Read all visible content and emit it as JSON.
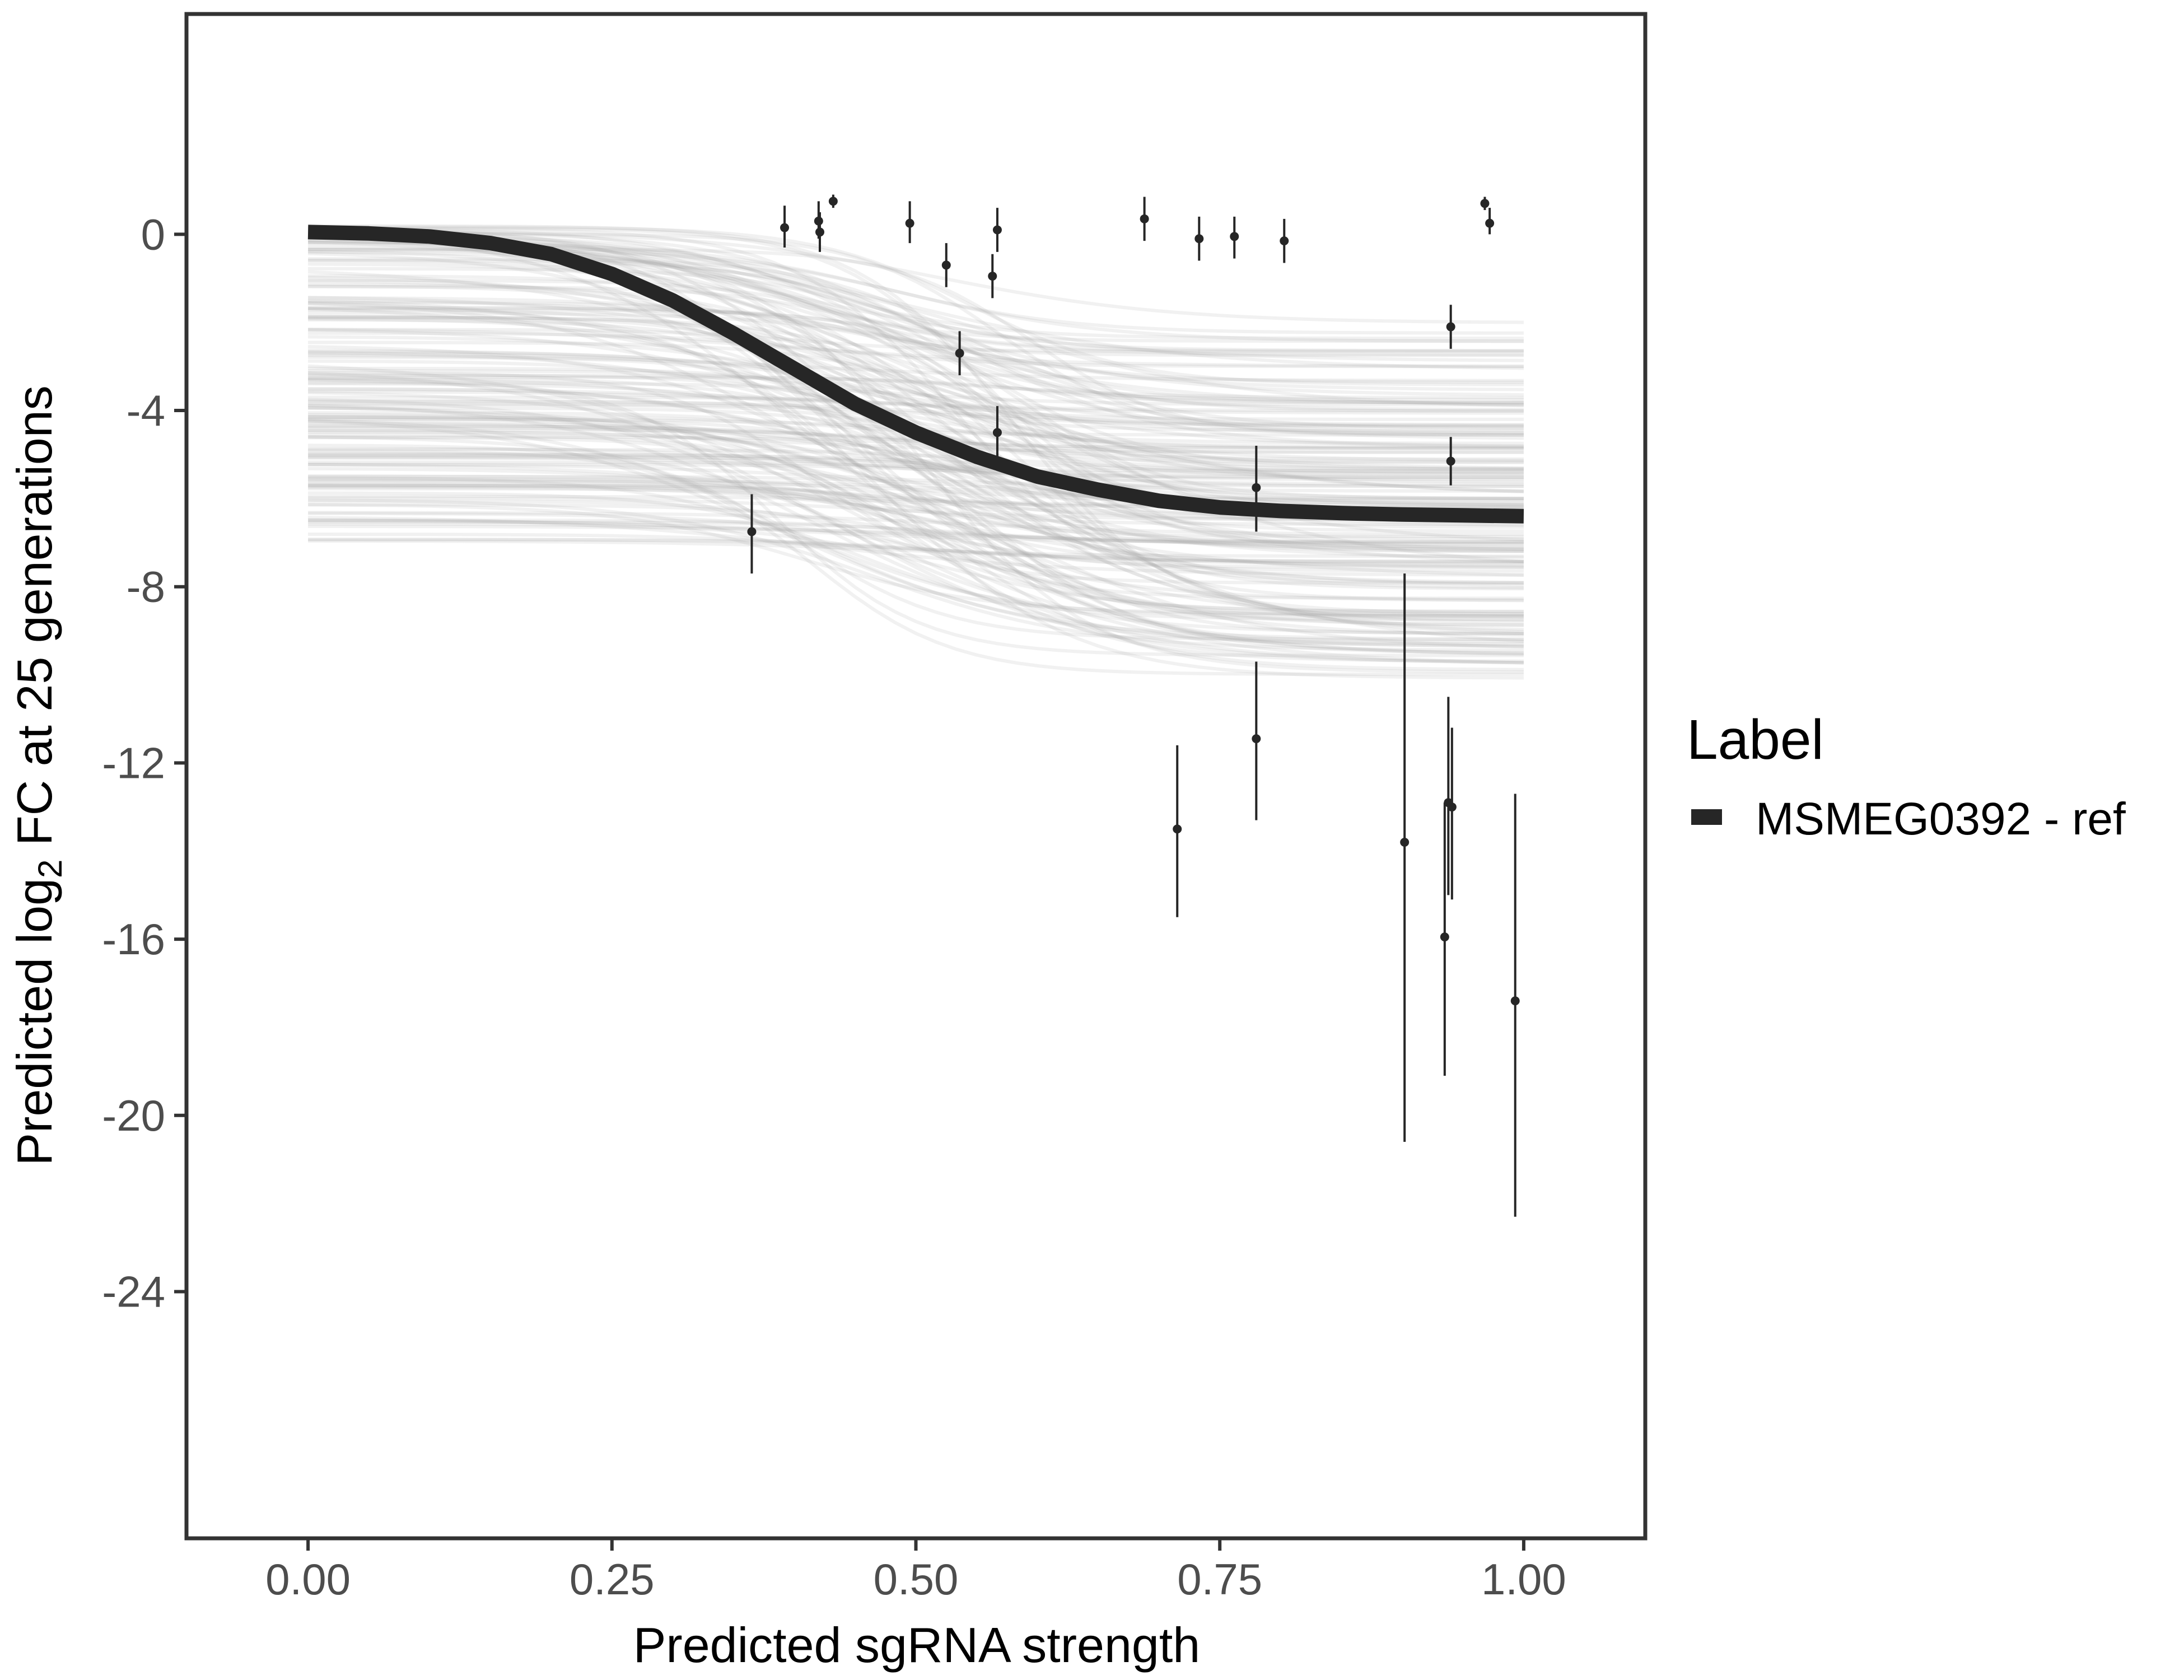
{
  "chart_data": {
    "type": "line",
    "xlabel": "Predicted sgRNA strength",
    "ylabel_prefix": "Predicted  log",
    "ylabel_sub": "2",
    "ylabel_suffix": " FC at 25 generations",
    "xlim": [
      -0.1,
      1.1
    ],
    "ylim": [
      -29.6,
      5
    ],
    "x_ticks": [
      0,
      0.25,
      0.5,
      0.75,
      1
    ],
    "x_tick_labels": [
      "0.00",
      "0.25",
      "0.50",
      "0.75",
      "1.00"
    ],
    "y_ticks": [
      0,
      -4,
      -8,
      -12,
      -16,
      -20,
      -24
    ],
    "y_tick_labels": [
      "0",
      "-4",
      "-8",
      "-12",
      "-16",
      "-20",
      "-24"
    ],
    "grid": false,
    "legend": {
      "title": "Label",
      "position": "right",
      "entries": [
        {
          "name": "MSMEG0392 - ref",
          "color": "#262626"
        }
      ]
    },
    "fit_curve": {
      "name": "MSMEG0392 - ref",
      "color": "#262626",
      "x": [
        0,
        0.05,
        0.1,
        0.15,
        0.2,
        0.25,
        0.3,
        0.35,
        0.4,
        0.45,
        0.5,
        0.55,
        0.6,
        0.65,
        0.7,
        0.75,
        0.8,
        0.85,
        0.9,
        0.95,
        1
      ],
      "y": [
        0.05,
        0.02,
        -0.05,
        -0.2,
        -0.45,
        -0.9,
        -1.5,
        -2.25,
        -3.05,
        -3.85,
        -4.5,
        -5.05,
        -5.5,
        -5.8,
        -6.05,
        -6.2,
        -6.28,
        -6.33,
        -6.36,
        -6.38,
        -6.4
      ]
    },
    "posterior_band": {
      "color": "#a6a6a6",
      "description_x": [
        0,
        1
      ],
      "upper_start": 0.2,
      "upper_end": -2.0,
      "lower_start": -7.0,
      "lower_end": -10.2
    },
    "points": [
      {
        "x": 0.365,
        "y": -6.75,
        "lo": -7.7,
        "hi": -5.9
      },
      {
        "x": 0.392,
        "y": 0.15,
        "lo": -0.3,
        "hi": 0.65
      },
      {
        "x": 0.42,
        "y": 0.3,
        "lo": -0.1,
        "hi": 0.75
      },
      {
        "x": 0.421,
        "y": 0.05,
        "lo": -0.4,
        "hi": 0.5
      },
      {
        "x": 0.432,
        "y": 0.75,
        "lo": 0.6,
        "hi": 0.9
      },
      {
        "x": 0.495,
        "y": 0.25,
        "lo": -0.2,
        "hi": 0.75
      },
      {
        "x": 0.525,
        "y": -0.7,
        "lo": -1.2,
        "hi": -0.2
      },
      {
        "x": 0.536,
        "y": -2.7,
        "lo": -3.2,
        "hi": -2.2
      },
      {
        "x": 0.563,
        "y": -0.95,
        "lo": -1.45,
        "hi": -0.45
      },
      {
        "x": 0.567,
        "y": 0.1,
        "lo": -0.4,
        "hi": 0.6
      },
      {
        "x": 0.567,
        "y": -4.5,
        "lo": -5.1,
        "hi": -3.9
      },
      {
        "x": 0.688,
        "y": 0.35,
        "lo": -0.15,
        "hi": 0.85
      },
      {
        "x": 0.715,
        "y": -13.5,
        "lo": -15.5,
        "hi": -11.6
      },
      {
        "x": 0.733,
        "y": -0.1,
        "lo": -0.6,
        "hi": 0.4
      },
      {
        "x": 0.762,
        "y": -0.05,
        "lo": -0.55,
        "hi": 0.4
      },
      {
        "x": 0.78,
        "y": -5.75,
        "lo": -6.75,
        "hi": -4.8
      },
      {
        "x": 0.78,
        "y": -11.45,
        "lo": -13.3,
        "hi": -9.7
      },
      {
        "x": 0.803,
        "y": -0.15,
        "lo": -0.65,
        "hi": 0.35
      },
      {
        "x": 0.902,
        "y": -13.8,
        "lo": -20.6,
        "hi": -7.7
      },
      {
        "x": 0.935,
        "y": -15.95,
        "lo": -19.1,
        "hi": -12.9
      },
      {
        "x": 0.938,
        "y": -12.9,
        "lo": -15.0,
        "hi": -10.5
      },
      {
        "x": 0.94,
        "y": -2.1,
        "lo": -2.6,
        "hi": -1.6
      },
      {
        "x": 0.94,
        "y": -5.15,
        "lo": -5.7,
        "hi": -4.6
      },
      {
        "x": 0.941,
        "y": -13.0,
        "lo": -15.1,
        "hi": -11.2
      },
      {
        "x": 0.968,
        "y": 0.7,
        "lo": 0.55,
        "hi": 0.85
      },
      {
        "x": 0.972,
        "y": 0.25,
        "lo": 0.0,
        "hi": 0.6
      },
      {
        "x": 0.993,
        "y": -17.4,
        "lo": -22.3,
        "hi": -12.7
      }
    ]
  }
}
